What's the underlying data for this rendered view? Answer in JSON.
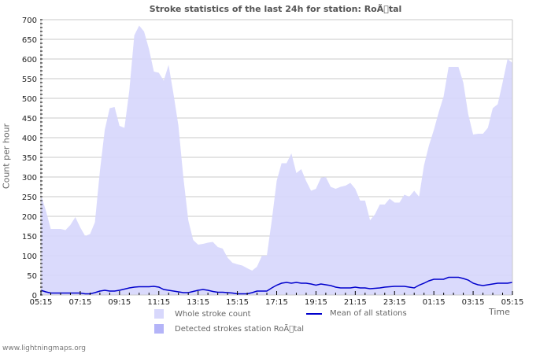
{
  "chart_data": {
    "type": "area",
    "title": "Stroke statistics of the last 24h for station: RoÃ\u0000tal",
    "xlabel": "Time",
    "ylabel": "Count per hour",
    "ylim": [
      0,
      700
    ],
    "yticks": [
      0,
      50,
      100,
      150,
      200,
      250,
      300,
      350,
      400,
      450,
      500,
      550,
      600,
      650,
      700
    ],
    "xtick_labels": [
      "05:15",
      "07:15",
      "09:15",
      "11:15",
      "13:15",
      "15:15",
      "17:15",
      "19:15",
      "21:15",
      "23:15",
      "01:15",
      "03:15",
      "05:15"
    ],
    "grid": true,
    "legend_position": "bottom",
    "series": [
      {
        "name": "Whole stroke count",
        "type": "area",
        "color": "#d8d8fc",
        "values": [
          255,
          215,
          168,
          168,
          168,
          165,
          178,
          198,
          172,
          150,
          155,
          185,
          315,
          420,
          475,
          478,
          430,
          425,
          520,
          660,
          685,
          670,
          625,
          568,
          565,
          545,
          585,
          510,
          430,
          300,
          190,
          140,
          128,
          130,
          133,
          135,
          122,
          118,
          95,
          82,
          78,
          75,
          68,
          62,
          72,
          100,
          100,
          190,
          290,
          335,
          335,
          360,
          310,
          320,
          290,
          265,
          270,
          298,
          300,
          275,
          270,
          275,
          278,
          285,
          270,
          240,
          240,
          190,
          205,
          230,
          230,
          245,
          235,
          235,
          255,
          250,
          265,
          250,
          330,
          380,
          420,
          465,
          505,
          580,
          580,
          580,
          540,
          460,
          408,
          410,
          410,
          425,
          475,
          485,
          540,
          600,
          590
        ]
      },
      {
        "name": "Detected strokes station RoÃ\u0000tal",
        "type": "area",
        "color": "#b4b4f8",
        "values": []
      },
      {
        "name": "Mean of all stations",
        "type": "line",
        "color": "#0000cc",
        "values": [
          12,
          8,
          5,
          5,
          5,
          5,
          5,
          5,
          5,
          3,
          3,
          6,
          10,
          12,
          10,
          10,
          12,
          15,
          18,
          20,
          21,
          21,
          21,
          22,
          20,
          14,
          12,
          10,
          8,
          6,
          6,
          9,
          12,
          14,
          12,
          9,
          7,
          7,
          6,
          5,
          3,
          3,
          3,
          6,
          10,
          10,
          10,
          18,
          25,
          30,
          32,
          30,
          32,
          30,
          30,
          28,
          25,
          28,
          26,
          24,
          20,
          18,
          18,
          18,
          20,
          18,
          18,
          16,
          17,
          18,
          20,
          21,
          22,
          22,
          22,
          20,
          18,
          25,
          30,
          36,
          40,
          40,
          40,
          45,
          45,
          45,
          42,
          38,
          30,
          26,
          24,
          26,
          28,
          30,
          30,
          30,
          32
        ]
      }
    ]
  },
  "title": "Stroke statistics of the last 24h for station: RoÃ\u0000tal",
  "axes": {
    "ylabel": "Count per hour",
    "xlabel": "Time"
  },
  "legend": {
    "whole": "Whole stroke count",
    "detected": "Detected strokes station RoÃ\u0000tal",
    "mean": "Mean of all stations"
  },
  "colors": {
    "whole": "#d8d8fc",
    "detected": "#b4b4f8",
    "mean": "#0000cc",
    "grid": "#c8c8c8"
  },
  "footer": "www.lightningmaps.org"
}
